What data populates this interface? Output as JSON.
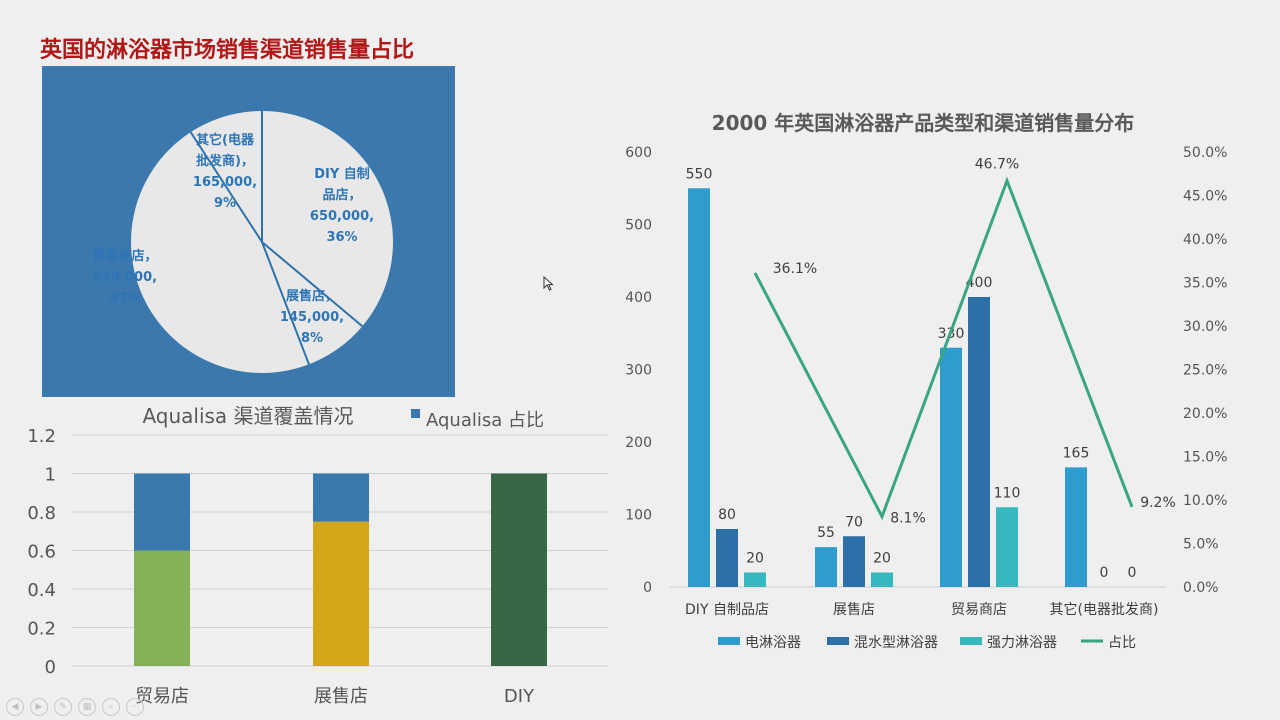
{
  "pie_title": "英国的淋浴器市场销售渠道销售量占比",
  "colors": {
    "pie_bg": "#3a78ae",
    "pie_fill": "#e8e8e8",
    "pie_line": "#2e72ab",
    "pie_label": "#2e75b6",
    "bar_blue": "#3a79ae",
    "bar_green": "#86b257",
    "bar_gold": "#d4a619",
    "bar_darkgreen": "#386745",
    "combo_elec": "#2e9ccc",
    "combo_mix": "#2d6fa8",
    "combo_power": "#36b8be",
    "combo_line": "#3aa585"
  },
  "icons": [
    "previous-icon",
    "next-icon",
    "pen-icon",
    "slides-icon",
    "zoom-icon",
    "more-icon"
  ],
  "chart_data": [
    {
      "type": "pie",
      "title": "英国的淋浴器市场销售渠道销售量占比",
      "slices": [
        {
          "label_lines": [
            "DIY 自制",
            "品店，",
            "650,000,",
            "36%"
          ],
          "name": "DIY 自制品店",
          "value": 650000,
          "percent": 36
        },
        {
          "label_lines": [
            "展售店，",
            "145,000,",
            "8%"
          ],
          "name": "展售店",
          "value": 145000,
          "percent": 8
        },
        {
          "label_lines": [
            "贸易商店，",
            "840,000,",
            "47%"
          ],
          "name": "贸易商店",
          "value": 840000,
          "percent": 47
        },
        {
          "label_lines": [
            "其它(电器",
            "批发商)，",
            "165,000,",
            "9%"
          ],
          "name": "其它(电器批发商)",
          "value": 165000,
          "percent": 9
        }
      ]
    },
    {
      "type": "bar",
      "stacked": true,
      "title": "Aqualisa 渠道覆盖情况",
      "legend": [
        "Aqualisa 占比"
      ],
      "categories": [
        "贸易店",
        "展售店",
        "DIY"
      ],
      "series": [
        {
          "values": [
            0.6,
            0.75,
            1.0
          ]
        },
        {
          "name": "Aqualisa 占比",
          "values": [
            0.4,
            0.25,
            0
          ]
        }
      ],
      "ylim": [
        0,
        1.2
      ],
      "yticks": [
        "0",
        "0.2",
        "0.4",
        "0.6",
        "0.8",
        "1",
        "1.2"
      ],
      "grid": true
    },
    {
      "type": "bar",
      "combo": "bar+line",
      "title": "2000 年英国淋浴器产品类型和渠道销售量分布",
      "categories": [
        "DIY 自制品店",
        "展售店",
        "贸易商店",
        "其它(电器批发商)"
      ],
      "series": [
        {
          "name": "电淋浴器",
          "values": [
            550,
            55,
            330,
            165
          ],
          "labels": [
            "550",
            "55",
            "330",
            "165"
          ]
        },
        {
          "name": "混水型淋浴器",
          "values": [
            80,
            70,
            400,
            0
          ],
          "labels": [
            "80",
            "70",
            "400",
            "0"
          ]
        },
        {
          "name": "强力淋浴器",
          "values": [
            20,
            20,
            110,
            0
          ],
          "labels": [
            "20",
            "20",
            "110",
            "0"
          ]
        },
        {
          "name": "占比",
          "type": "line",
          "axis": "right",
          "values": [
            36.1,
            8.1,
            46.7,
            9.2
          ],
          "labels": [
            "36.1%",
            "8.1%",
            "46.7%",
            "9.2%"
          ]
        }
      ],
      "ylim": [
        0,
        600
      ],
      "yticks": [
        "0",
        "100",
        "200",
        "300",
        "400",
        "500",
        "600"
      ],
      "y2lim": [
        0,
        50
      ],
      "y2ticks": [
        "0.0%",
        "5.0%",
        "10.0%",
        "15.0%",
        "20.0%",
        "25.0%",
        "30.0%",
        "35.0%",
        "40.0%",
        "45.0%",
        "50.0%"
      ],
      "legend": [
        "电淋浴器",
        "混水型淋浴器",
        "强力淋浴器",
        "占比"
      ],
      "legend_position": "bottom",
      "grid": false
    }
  ]
}
